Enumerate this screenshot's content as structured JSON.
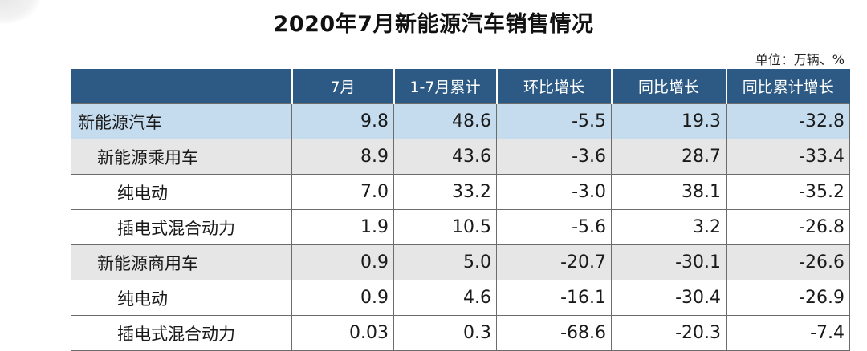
{
  "title": "2020年7月新能源汽车销售情况",
  "unit": "单位：万辆、%",
  "table": {
    "headers": [
      "",
      "7月",
      "1-7月累计",
      "环比增长",
      "同比增长",
      "同比累计增长"
    ],
    "rows": [
      {
        "level": 0,
        "cells": [
          "新能源汽车",
          "9.8",
          "48.6",
          "-5.5",
          "19.3",
          "-32.8"
        ]
      },
      {
        "level": 1,
        "cells": [
          "新能源乘用车",
          "8.9",
          "43.6",
          "-3.6",
          "28.7",
          "-33.4"
        ]
      },
      {
        "level": 2,
        "cells": [
          "纯电动",
          "7.0",
          "33.2",
          "-3.0",
          "38.1",
          "-35.2"
        ]
      },
      {
        "level": 2,
        "cells": [
          "插电式混合动力",
          "1.9",
          "10.5",
          "-5.6",
          "3.2",
          "-26.8"
        ]
      },
      {
        "level": 1,
        "cells": [
          "新能源商用车",
          "0.9",
          "5.0",
          "-20.7",
          "-30.1",
          "-26.6"
        ]
      },
      {
        "level": 2,
        "cells": [
          "纯电动",
          "0.9",
          "4.6",
          "-16.1",
          "-30.4",
          "-26.9"
        ]
      },
      {
        "level": 2,
        "cells": [
          "插电式混合动力",
          "0.03",
          "0.3",
          "-68.6",
          "-20.3",
          "-7.4"
        ]
      }
    ]
  },
  "colors": {
    "header_bg": "#2c5a84",
    "total_row_bg": "#c5dcef",
    "subtotal_row_bg": "#e6e6e6"
  }
}
